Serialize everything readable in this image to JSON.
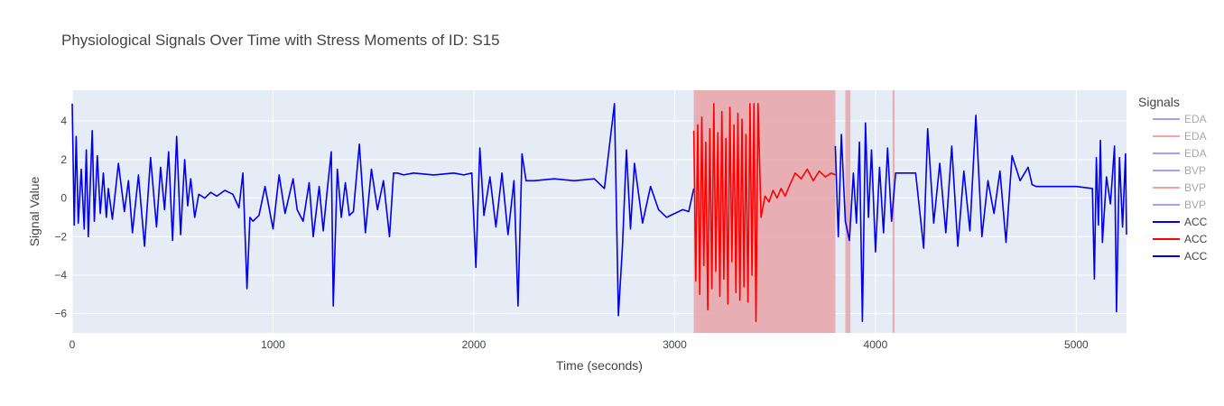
{
  "chart_data": {
    "type": "line",
    "title": "Physiological Signals Over Time with Stress Moments of ID: S15",
    "xlabel": "Time (seconds)",
    "ylabel": "Signal Value",
    "xlim": [
      0,
      5250
    ],
    "ylim": [
      -7.0,
      5.6
    ],
    "x_ticks": [
      0,
      1000,
      2000,
      3000,
      4000,
      5000
    ],
    "y_ticks": [
      -6,
      -4,
      -2,
      0,
      2,
      4
    ],
    "grid": true,
    "plot_background": "#e5ecf6",
    "stress_color": "#e8a3a8",
    "stress_regions": [
      [
        3095,
        3800
      ],
      [
        3850,
        3875
      ],
      [
        4085,
        4095
      ]
    ],
    "legend": {
      "title": "Signals",
      "placement": "right",
      "entries": [
        {
          "name": "EDA",
          "color": "#7b7bf0",
          "muted": true
        },
        {
          "name": "EDA",
          "color": "#f07b7b",
          "muted": true
        },
        {
          "name": "EDA",
          "color": "#7b7bf0",
          "muted": true
        },
        {
          "name": "BVP",
          "color": "#7b7bf0",
          "muted": true
        },
        {
          "name": "BVP",
          "color": "#f07b7b",
          "muted": true
        },
        {
          "name": "BVP",
          "color": "#7b7bf0",
          "muted": true
        },
        {
          "name": "ACC",
          "color": "#0000ee",
          "muted": false
        },
        {
          "name": "ACC",
          "color": "#ff0000",
          "muted": false
        },
        {
          "name": "ACC",
          "color": "#0000ee",
          "muted": false
        }
      ]
    },
    "series": [
      {
        "name": "ACC",
        "color": "#0000ee",
        "x": [
          0,
          10,
          20,
          30,
          45,
          60,
          70,
          80,
          100,
          110,
          125,
          140,
          155,
          170,
          180,
          200,
          230,
          260,
          280,
          300,
          330,
          360,
          390,
          420,
          440,
          460,
          480,
          500,
          520,
          540,
          560,
          575,
          590,
          610,
          630,
          660,
          690,
          720,
          760,
          800,
          830,
          850,
          870,
          885,
          900,
          930,
          960,
          1000,
          1030,
          1060,
          1100,
          1120,
          1150,
          1180,
          1200,
          1230,
          1250,
          1270,
          1290,
          1300,
          1320,
          1340,
          1360,
          1380,
          1400,
          1430,
          1460,
          1490,
          1520,
          1550,
          1580,
          1600,
          1620,
          1650,
          1700,
          1800,
          1900,
          1950,
          1990,
          2010,
          2030,
          2050,
          2080,
          2110,
          2140,
          2170,
          2200,
          2220,
          2240,
          2260,
          2300,
          2400,
          2500,
          2600,
          2650,
          2700,
          2720,
          2740,
          2760,
          2780,
          2800,
          2840,
          2880,
          2920,
          2960,
          3000,
          3040,
          3070,
          3095
        ],
        "y": [
          4.9,
          -1.4,
          3.2,
          -1.3,
          1.5,
          -1.6,
          2.5,
          -2.0,
          3.5,
          -1.2,
          2.2,
          -0.8,
          1.3,
          -1.0,
          0.5,
          -1.1,
          1.8,
          -0.7,
          0.9,
          -1.8,
          1.2,
          -2.5,
          2.1,
          -1.5,
          1.6,
          -0.6,
          2.4,
          -2.2,
          3.2,
          -1.9,
          2.0,
          -0.4,
          1.0,
          -1.0,
          0.2,
          0.0,
          0.3,
          0.1,
          0.4,
          0.2,
          -0.5,
          1.3,
          -4.7,
          -1.0,
          -1.2,
          -0.9,
          0.6,
          -1.6,
          1.2,
          -0.8,
          1.0,
          -0.6,
          -1.2,
          0.8,
          -2.0,
          0.6,
          -1.7,
          0.4,
          2.4,
          -5.6,
          1.5,
          -1.0,
          0.8,
          -0.9,
          -0.7,
          2.8,
          -1.8,
          1.5,
          -0.6,
          0.9,
          -2.0,
          1.3,
          1.3,
          1.2,
          1.3,
          1.2,
          1.3,
          1.2,
          1.3,
          -3.6,
          2.6,
          -0.9,
          1.1,
          -1.5,
          1.3,
          -1.9,
          0.9,
          -5.6,
          2.3,
          0.9,
          0.9,
          1.0,
          0.9,
          1.0,
          0.5,
          4.9,
          -6.1,
          -2.5,
          2.5,
          -1.6,
          1.8,
          -1.3,
          0.6,
          -0.6,
          -1.0,
          -0.8,
          -0.6,
          -0.7,
          0.5
        ]
      },
      {
        "name": "ACC",
        "color": "#ff0000",
        "x": [
          3095,
          3105,
          3115,
          3125,
          3135,
          3145,
          3155,
          3165,
          3175,
          3185,
          3195,
          3205,
          3215,
          3225,
          3235,
          3245,
          3255,
          3265,
          3275,
          3285,
          3295,
          3305,
          3315,
          3325,
          3335,
          3345,
          3355,
          3365,
          3375,
          3385,
          3395,
          3405,
          3415,
          3430,
          3450,
          3470,
          3490,
          3510,
          3530,
          3550,
          3570,
          3600,
          3630,
          3660,
          3690,
          3720,
          3750,
          3780,
          3800
        ],
        "y": [
          3.5,
          -4.3,
          3.8,
          -5.0,
          4.2,
          -3.5,
          2.9,
          -5.8,
          3.6,
          -4.7,
          4.9,
          -3.8,
          3.4,
          -5.1,
          4.5,
          -4.2,
          3.1,
          -5.5,
          4.7,
          -3.3,
          3.8,
          -4.9,
          4.4,
          -5.3,
          4.1,
          -4.6,
          3.3,
          -5.4,
          4.9,
          -4.0,
          4.9,
          -6.4,
          4.9,
          -1.0,
          0.1,
          -0.2,
          0.4,
          0.0,
          0.5,
          0.1,
          0.6,
          1.3,
          1.0,
          1.5,
          0.9,
          1.4,
          1.1,
          1.3,
          1.2
        ]
      },
      {
        "name": "ACC",
        "color": "#0000ee",
        "x": [
          3800,
          3815,
          3830,
          3850,
          3870,
          3890,
          3905,
          3920,
          3935,
          3950,
          3965,
          3980,
          4000,
          4020,
          4040,
          4060,
          4080,
          4100,
          4120,
          4200,
          4240,
          4260,
          4290,
          4320,
          4350,
          4380,
          4410,
          4440,
          4470,
          4500,
          4530,
          4560,
          4590,
          4620,
          4650,
          4680,
          4720,
          4760,
          4780,
          4800,
          5000,
          5080,
          5090,
          5100,
          5110,
          5120,
          5130,
          5150,
          5170,
          5190,
          5200,
          5215,
          5230,
          5245,
          5250
        ],
        "y": [
          2.7,
          -2.0,
          3.3,
          -1.2,
          -2.2,
          1.3,
          -1.3,
          2.9,
          -6.4,
          3.9,
          -1.0,
          2.5,
          -2.8,
          1.6,
          -1.8,
          2.6,
          -1.2,
          1.3,
          1.3,
          1.3,
          -2.6,
          3.6,
          -1.3,
          1.8,
          -1.8,
          2.7,
          -2.5,
          1.4,
          -1.7,
          4.3,
          -2.0,
          0.9,
          -0.8,
          1.4,
          -2.3,
          2.2,
          0.9,
          1.6,
          0.7,
          0.6,
          0.6,
          0.5,
          -4.2,
          2.1,
          -1.4,
          3.0,
          -2.3,
          1.1,
          -0.3,
          2.7,
          -5.9,
          2.1,
          -1.5,
          2.3,
          -1.9
        ]
      }
    ]
  }
}
